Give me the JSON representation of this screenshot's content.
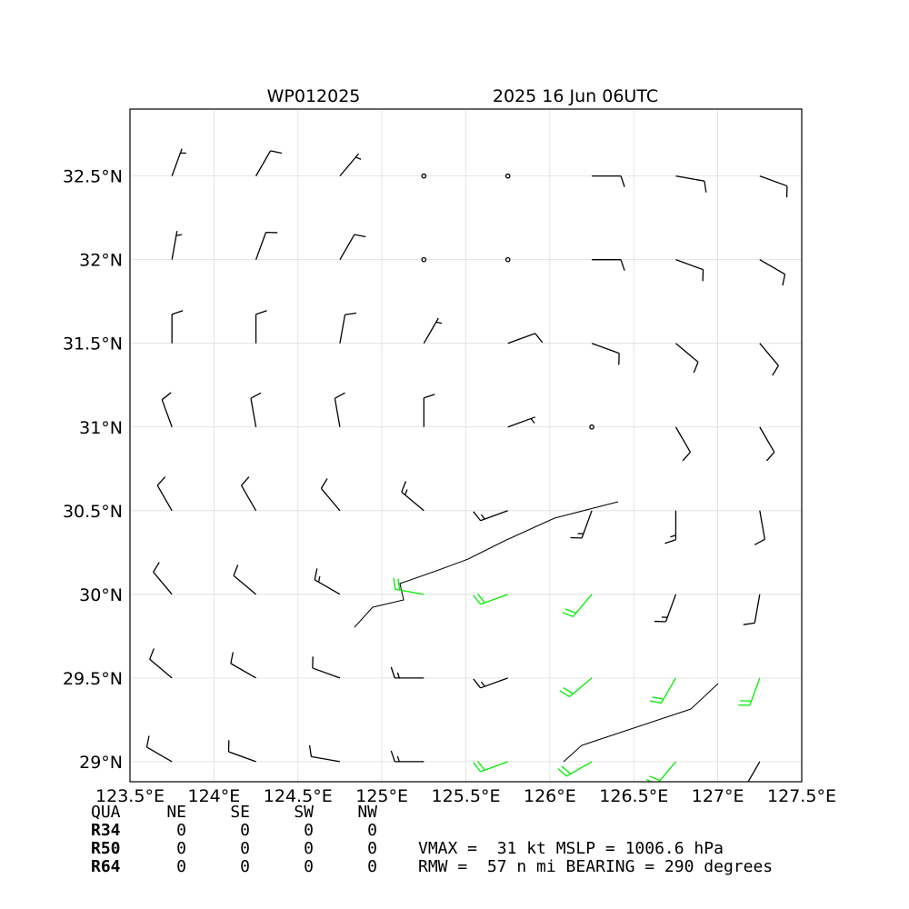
{
  "chart_data": {
    "type": "barbs",
    "titles": [
      "WP012025",
      "2025 16 Jun 06UTC"
    ],
    "xlim": [
      123.5,
      127.5
    ],
    "ylim": [
      28.88,
      32.9
    ],
    "xticks": [
      {
        "value": 123.5,
        "label": "123.5°E"
      },
      {
        "value": 124,
        "label": "124°E"
      },
      {
        "value": 124.5,
        "label": "124.5°E"
      },
      {
        "value": 125,
        "label": "125°E"
      },
      {
        "value": 125.5,
        "label": "125.5°E"
      },
      {
        "value": 126,
        "label": "126°E"
      },
      {
        "value": 126.5,
        "label": "126.5°E"
      },
      {
        "value": 127,
        "label": "127°E"
      },
      {
        "value": 127.5,
        "label": "127.5°E"
      }
    ],
    "yticks": [
      {
        "value": 29,
        "label": "29°N"
      },
      {
        "value": 29.5,
        "label": "29.5°N"
      },
      {
        "value": 30,
        "label": "30°N"
      },
      {
        "value": 30.5,
        "label": "30.5°N"
      },
      {
        "value": 31,
        "label": "31°N"
      },
      {
        "value": 31.5,
        "label": "31.5°N"
      },
      {
        "value": 32,
        "label": "32°N"
      },
      {
        "value": 32.5,
        "label": "32.5°N"
      }
    ],
    "grid": true,
    "series": [
      {
        "color": "#000000",
        "x": [
          123.75,
          124.25,
          124.75,
          125.25,
          127.25,
          123.75,
          124.25,
          124.75,
          125.25,
          125.75,
          123.75,
          124.25,
          124.75,
          126.75,
          127.25,
          123.75,
          124.25,
          124.75,
          125.25,
          125.75,
          126.25,
          126.75,
          127.25,
          123.75,
          124.25,
          124.75,
          125.25,
          125.75,
          126.25,
          126.75,
          127.25,
          123.75,
          124.25,
          124.75,
          125.25,
          125.75,
          126.25,
          126.75,
          127.25,
          123.75,
          124.25,
          124.75,
          125.25,
          125.75,
          126.25,
          126.75,
          127.25,
          123.75,
          124.25,
          124.75,
          125.25,
          125.75,
          126.25,
          126.75,
          127.25
        ],
        "y": [
          29,
          29,
          29,
          29,
          29,
          29.5,
          29.5,
          29.5,
          29.5,
          29.5,
          30,
          30,
          30,
          30,
          30,
          30.5,
          30.5,
          30.5,
          30.5,
          30.5,
          30.5,
          30.5,
          30.5,
          31,
          31,
          31,
          31,
          31,
          31,
          31,
          31,
          31.5,
          31.5,
          31.5,
          31.5,
          31.5,
          31.5,
          31.5,
          31.5,
          32,
          32,
          32,
          32,
          32,
          32,
          32,
          32,
          32.5,
          32.5,
          32.5,
          32.5,
          32.5,
          32.5,
          32.5,
          32.5
        ],
        "speeds": [
          10,
          10,
          10,
          15,
          15,
          10,
          10,
          10,
          15,
          15,
          10,
          10,
          15,
          15,
          10,
          10,
          10,
          10,
          15,
          15,
          15,
          15,
          10,
          10,
          10,
          10,
          10,
          5,
          0,
          10,
          10,
          10,
          10,
          10,
          5,
          10,
          10,
          10,
          10,
          5,
          10,
          10,
          0,
          0,
          10,
          10,
          10,
          5,
          10,
          5,
          0,
          0,
          10,
          10,
          10
        ],
        "directions": [
          300,
          290,
          280,
          270,
          210,
          310,
          300,
          290,
          270,
          250,
          320,
          310,
          300,
          200,
          190,
          330,
          330,
          320,
          310,
          250,
          200,
          180,
          170,
          340,
          350,
          350,
          0,
          70,
          140,
          150,
          150,
          0,
          0,
          10,
          30,
          70,
          110,
          130,
          140,
          10,
          20,
          30,
          50,
          70,
          90,
          110,
          120,
          20,
          30,
          40,
          50,
          70,
          90,
          100,
          110
        ]
      },
      {
        "color": "#00ee00",
        "x": [
          125.75,
          126.25,
          126.75,
          126.25,
          126.75,
          127.25,
          125.25,
          125.75,
          126.25
        ],
        "y": [
          29,
          29,
          29,
          29.5,
          29.5,
          29.5,
          30,
          30,
          30
        ],
        "speeds": [
          20,
          20,
          20,
          20,
          20,
          20,
          20,
          20,
          20
        ],
        "directions": [
          250,
          240,
          220,
          230,
          210,
          200,
          280,
          250,
          220
        ]
      }
    ]
  },
  "table": {
    "header": [
      "QUA",
      "NE",
      "SE",
      "SW",
      "NW"
    ],
    "rows": [
      [
        "R34",
        0,
        0,
        0,
        0
      ],
      [
        "R50",
        0,
        0,
        0,
        0
      ],
      [
        "R64",
        0,
        0,
        0,
        0
      ]
    ]
  },
  "info": [
    "VMAX =  31 kt MSLP = 1006.6 hPa",
    "RMW =  57 n mi BEARING = 290 degrees"
  ]
}
